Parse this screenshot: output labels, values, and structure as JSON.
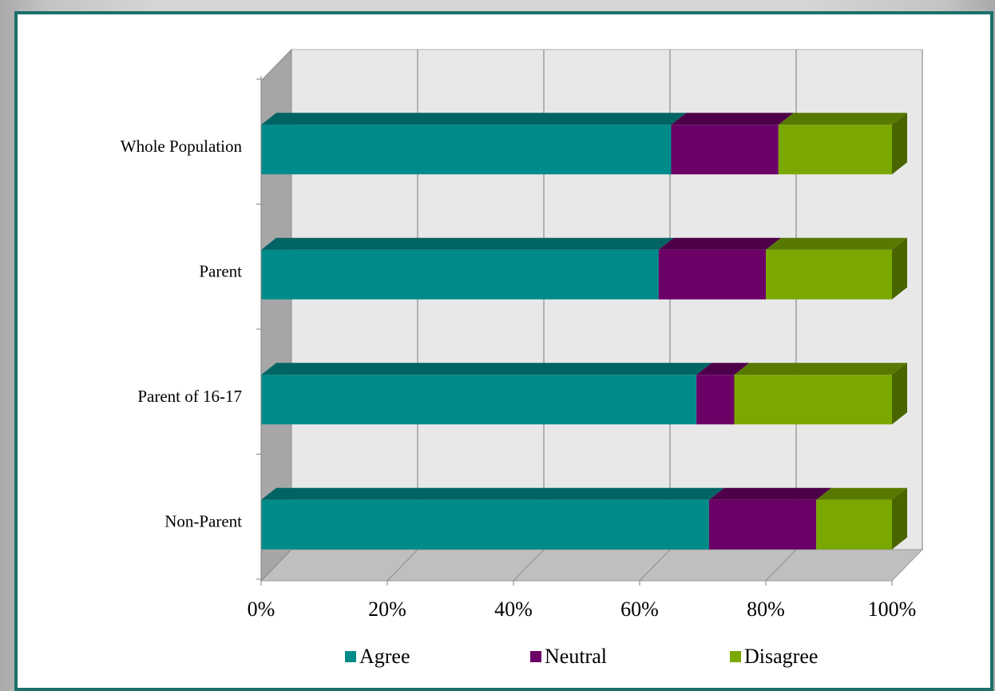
{
  "chart_data": {
    "type": "bar",
    "orientation": "horizontal",
    "stacked": "percent",
    "three_d": true,
    "categories": [
      "Whole Population",
      "Parent",
      "Parent of 16-17",
      "Non-Parent"
    ],
    "series": [
      {
        "name": "Agree",
        "color": "#008b8b",
        "values": [
          65,
          63,
          69,
          71
        ]
      },
      {
        "name": "Neutral",
        "color": "#6b0066",
        "values": [
          17,
          17,
          6,
          17
        ]
      },
      {
        "name": "Disagree",
        "color": "#7aa800",
        "values": [
          18,
          20,
          25,
          12
        ]
      }
    ],
    "x_ticks": [
      "0%",
      "20%",
      "40%",
      "60%",
      "80%",
      "100%"
    ],
    "xlim": [
      0,
      100
    ],
    "grid": true,
    "legend_position": "bottom"
  }
}
